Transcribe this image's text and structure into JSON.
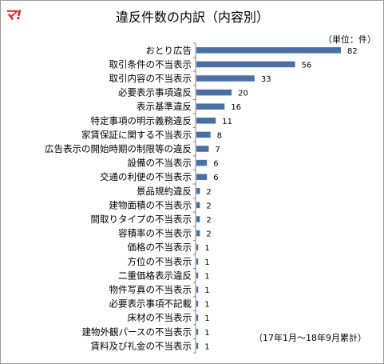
{
  "logo_text": "マ!",
  "chart_data": {
    "type": "bar",
    "orientation": "horizontal",
    "title": "違反件数の内訳（内容別）",
    "unit_label": "（単位：件）",
    "note": "（17年1月〜18年9月累計）",
    "bar_color": "#4a6fa5",
    "categories": [
      "おとり広告",
      "取引条件の不当表示",
      "取引内容の不当表示",
      "必要表示事項違反",
      "表示基準違反",
      "特定事項の明示義務違反",
      "家賃保証に関する不当表示",
      "広告表示の開始時期の制限等の違反",
      "設備の不当表示",
      "交通の利便の不当表示",
      "景品規約違反",
      "建物面積の不当表示",
      "間取りタイプの不当表示",
      "容積率の不当表示",
      "価格の不当表示",
      "方位の不当表示",
      "二重価格表示違反",
      "物件写真の不当表示",
      "必要表示事項不記載",
      "床材の不当表示",
      "建物外観パースの不当表示",
      "賃料及び礼金の不当表示"
    ],
    "values": [
      82,
      56,
      33,
      20,
      16,
      11,
      8,
      7,
      6,
      6,
      2,
      2,
      2,
      2,
      1,
      1,
      1,
      1,
      1,
      1,
      1,
      1
    ],
    "xlim": [
      0,
      82
    ],
    "grid": false,
    "legend": "none"
  }
}
